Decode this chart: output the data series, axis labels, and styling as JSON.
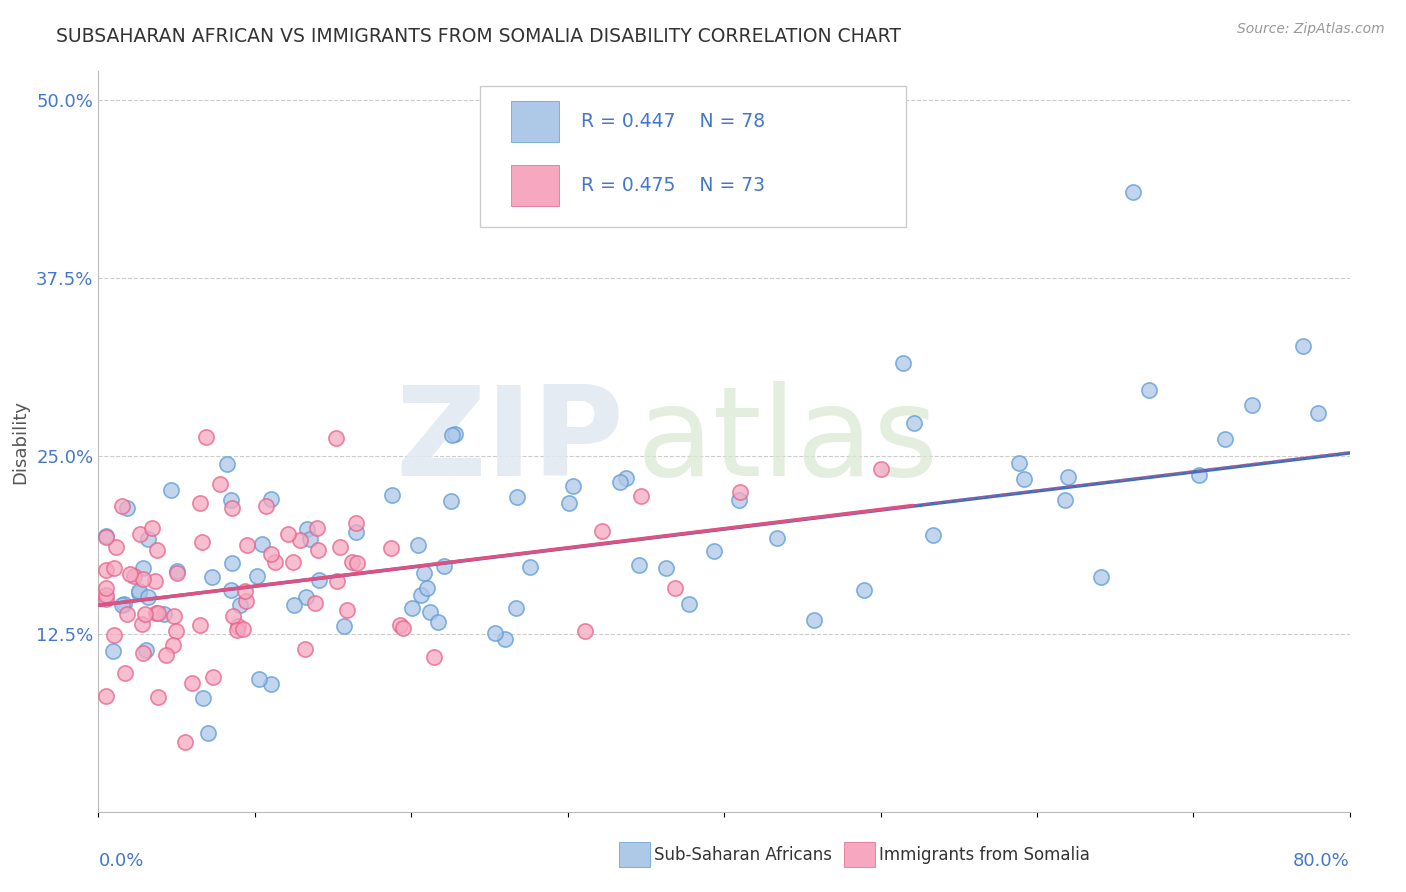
{
  "title": "SUBSAHARAN AFRICAN VS IMMIGRANTS FROM SOMALIA DISABILITY CORRELATION CHART",
  "source": "Source: ZipAtlas.com",
  "ylabel": "Disability",
  "xlim": [
    0.0,
    0.8
  ],
  "ylim": [
    0.0,
    0.52
  ],
  "yticks": [
    0.0,
    0.125,
    0.25,
    0.375,
    0.5
  ],
  "ytick_labels": [
    "",
    "12.5%",
    "25.0%",
    "37.5%",
    "50.0%"
  ],
  "legend_r1": "R = 0.447",
  "legend_n1": "N = 78",
  "legend_r2": "R = 0.475",
  "legend_n2": "N = 73",
  "color_blue_fill": "#aec8e8",
  "color_blue_edge": "#5b9bd5",
  "color_pink_fill": "#f5a8c0",
  "color_pink_edge": "#e8608a",
  "color_blue_line": "#3a6fbe",
  "color_pink_line": "#e05080",
  "label1": "Sub-Saharan Africans",
  "label2": "Immigrants from Somalia",
  "title_color": "#333333",
  "axis_color": "#4477cc",
  "background_color": "#ffffff",
  "blue_trend_x0": 0.0,
  "blue_trend_y0": 0.145,
  "blue_trend_x1": 0.8,
  "blue_trend_y1": 0.252,
  "pink_trend_x0": 0.0,
  "pink_trend_y0": 0.145,
  "pink_trend_x1": 0.52,
  "pink_trend_y1": 0.215
}
